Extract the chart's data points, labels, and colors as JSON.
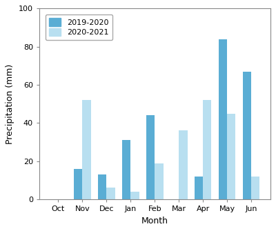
{
  "months": [
    "Oct",
    "Nov",
    "Dec",
    "Jan",
    "Feb",
    "Mar",
    "Apr",
    "May",
    "Jun"
  ],
  "series1_label": "2019-2020",
  "series2_label": "2020-2021",
  "series1_values": [
    0,
    16,
    13,
    31,
    44,
    0,
    12,
    84,
    67
  ],
  "series2_values": [
    0,
    52,
    6,
    4,
    19,
    36,
    52,
    45,
    12
  ],
  "series1_color": "#5aadd4",
  "series2_color": "#b8dff0",
  "ylabel": "Precipitation (mm)",
  "xlabel": "Month",
  "ylim": [
    0,
    100
  ],
  "yticks": [
    0,
    20,
    40,
    60,
    80,
    100
  ],
  "bar_width": 0.35,
  "background_color": "#ffffff",
  "axis_fontsize": 9,
  "tick_fontsize": 8,
  "legend_fontsize": 8
}
